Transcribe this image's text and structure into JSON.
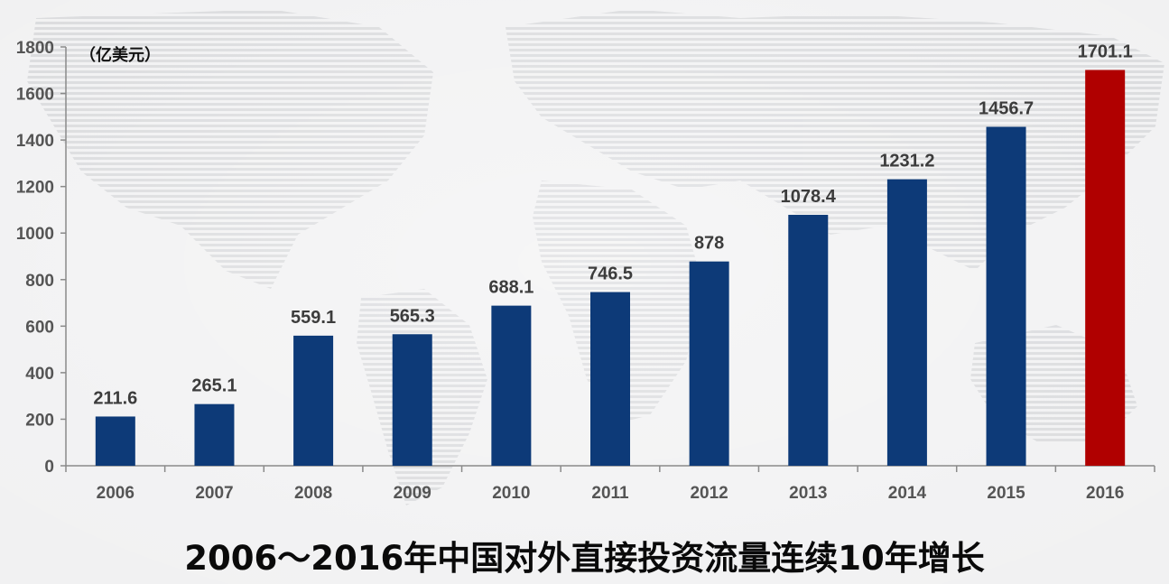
{
  "chart_data": {
    "type": "bar",
    "title": "2006～2016年中国对外直接投资流量连续10年增长",
    "unit": "（亿美元）",
    "categories": [
      "2006",
      "2007",
      "2008",
      "2009",
      "2010",
      "2011",
      "2012",
      "2013",
      "2014",
      "2015",
      "2016"
    ],
    "values": [
      211.6,
      265.1,
      559.1,
      565.3,
      688.1,
      746.5,
      878,
      1078.4,
      1231.2,
      1456.7,
      1701.1
    ],
    "value_labels": [
      "211.6",
      "265.1",
      "559.1",
      "565.3",
      "688.1",
      "746.5",
      "878",
      "1078.4",
      "1231.2",
      "1456.7",
      "1701.1"
    ],
    "ylim": [
      0,
      1800
    ],
    "yticks": [
      0,
      200,
      400,
      600,
      800,
      1000,
      1200,
      1400,
      1600,
      1800
    ],
    "bar_color": "#0d3a78",
    "highlight_color": "#b00000",
    "highlight_category": "2016",
    "grid": false,
    "legend": false
  }
}
